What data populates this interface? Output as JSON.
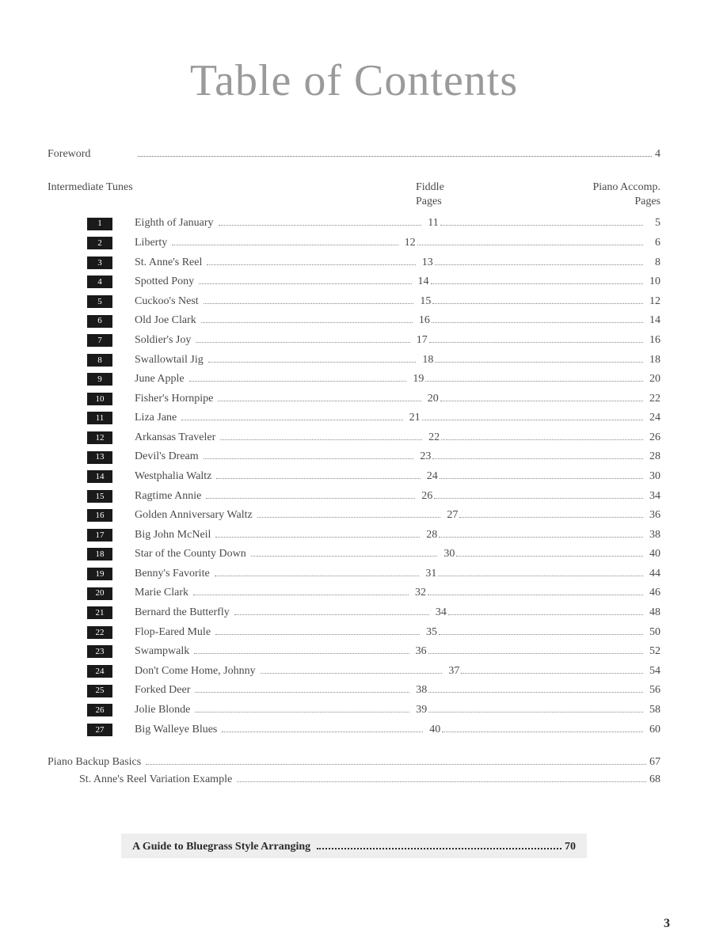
{
  "title": "Table of Contents",
  "foreword": {
    "label": "Foreword",
    "page": "4"
  },
  "section": {
    "label": "Intermediate Tunes",
    "col1": "Fiddle",
    "col1_sub": "Pages",
    "col2": "Piano Accomp.",
    "col2_sub": "Pages"
  },
  "tunes": [
    {
      "n": "1",
      "title": "Eighth of January",
      "fiddle": "11",
      "accomp": "5"
    },
    {
      "n": "2",
      "title": "Liberty",
      "fiddle": "12",
      "accomp": "6"
    },
    {
      "n": "3",
      "title": "St. Anne's Reel",
      "fiddle": "13",
      "accomp": "8"
    },
    {
      "n": "4",
      "title": "Spotted Pony",
      "fiddle": "14",
      "accomp": "10"
    },
    {
      "n": "5",
      "title": "Cuckoo's Nest",
      "fiddle": "15",
      "accomp": "12"
    },
    {
      "n": "6",
      "title": "Old Joe Clark",
      "fiddle": "16",
      "accomp": "14"
    },
    {
      "n": "7",
      "title": "Soldier's Joy",
      "fiddle": "17",
      "accomp": "16"
    },
    {
      "n": "8",
      "title": "Swallowtail Jig",
      "fiddle": "18",
      "accomp": "18"
    },
    {
      "n": "9",
      "title": "June Apple",
      "fiddle": "19",
      "accomp": "20"
    },
    {
      "n": "10",
      "title": "Fisher's Hornpipe",
      "fiddle": "20",
      "accomp": "22"
    },
    {
      "n": "11",
      "title": "Liza Jane",
      "fiddle": "21",
      "accomp": "24"
    },
    {
      "n": "12",
      "title": "Arkansas Traveler",
      "fiddle": "22",
      "accomp": "26"
    },
    {
      "n": "13",
      "title": "Devil's Dream",
      "fiddle": "23",
      "accomp": "28"
    },
    {
      "n": "14",
      "title": "Westphalia Waltz",
      "fiddle": "24",
      "accomp": "30"
    },
    {
      "n": "15",
      "title": "Ragtime Annie",
      "fiddle": "26",
      "accomp": "34"
    },
    {
      "n": "16",
      "title": "Golden Anniversary Waltz",
      "fiddle": "27",
      "accomp": "36"
    },
    {
      "n": "17",
      "title": "Big John McNeil",
      "fiddle": "28",
      "accomp": "38"
    },
    {
      "n": "18",
      "title": "Star of the County Down",
      "fiddle": "30",
      "accomp": "40"
    },
    {
      "n": "19",
      "title": "Benny's Favorite",
      "fiddle": "31",
      "accomp": "44"
    },
    {
      "n": "20",
      "title": "Marie Clark",
      "fiddle": "32",
      "accomp": "46"
    },
    {
      "n": "21",
      "title": "Bernard the Butterfly",
      "fiddle": "34",
      "accomp": "48"
    },
    {
      "n": "22",
      "title": "Flop-Eared Mule",
      "fiddle": "35",
      "accomp": "50"
    },
    {
      "n": "23",
      "title": "Swampwalk",
      "fiddle": "36",
      "accomp": "52"
    },
    {
      "n": "24",
      "title": "Don't Come Home, Johnny",
      "fiddle": "37",
      "accomp": "54"
    },
    {
      "n": "25",
      "title": "Forked Deer",
      "fiddle": "38",
      "accomp": "56"
    },
    {
      "n": "26",
      "title": "Jolie Blonde",
      "fiddle": "39",
      "accomp": "58"
    },
    {
      "n": "27",
      "title": "Big Walleye Blues",
      "fiddle": "40",
      "accomp": "60"
    }
  ],
  "extras": [
    {
      "label": "Piano Backup Basics",
      "page": "67",
      "indent": false
    },
    {
      "label": "St. Anne's Reel Variation Example",
      "page": "68",
      "indent": true
    }
  ],
  "guide": {
    "label": "A Guide to Bluegrass Style Arranging",
    "page": "70"
  },
  "page_number": "3",
  "colors": {
    "title_color": "#9a9a9a",
    "text_color": "#4a4a4a",
    "numbox_bg": "#1a1a1a",
    "numbox_fg": "#ffffff",
    "guide_bg": "#eeeeee"
  }
}
